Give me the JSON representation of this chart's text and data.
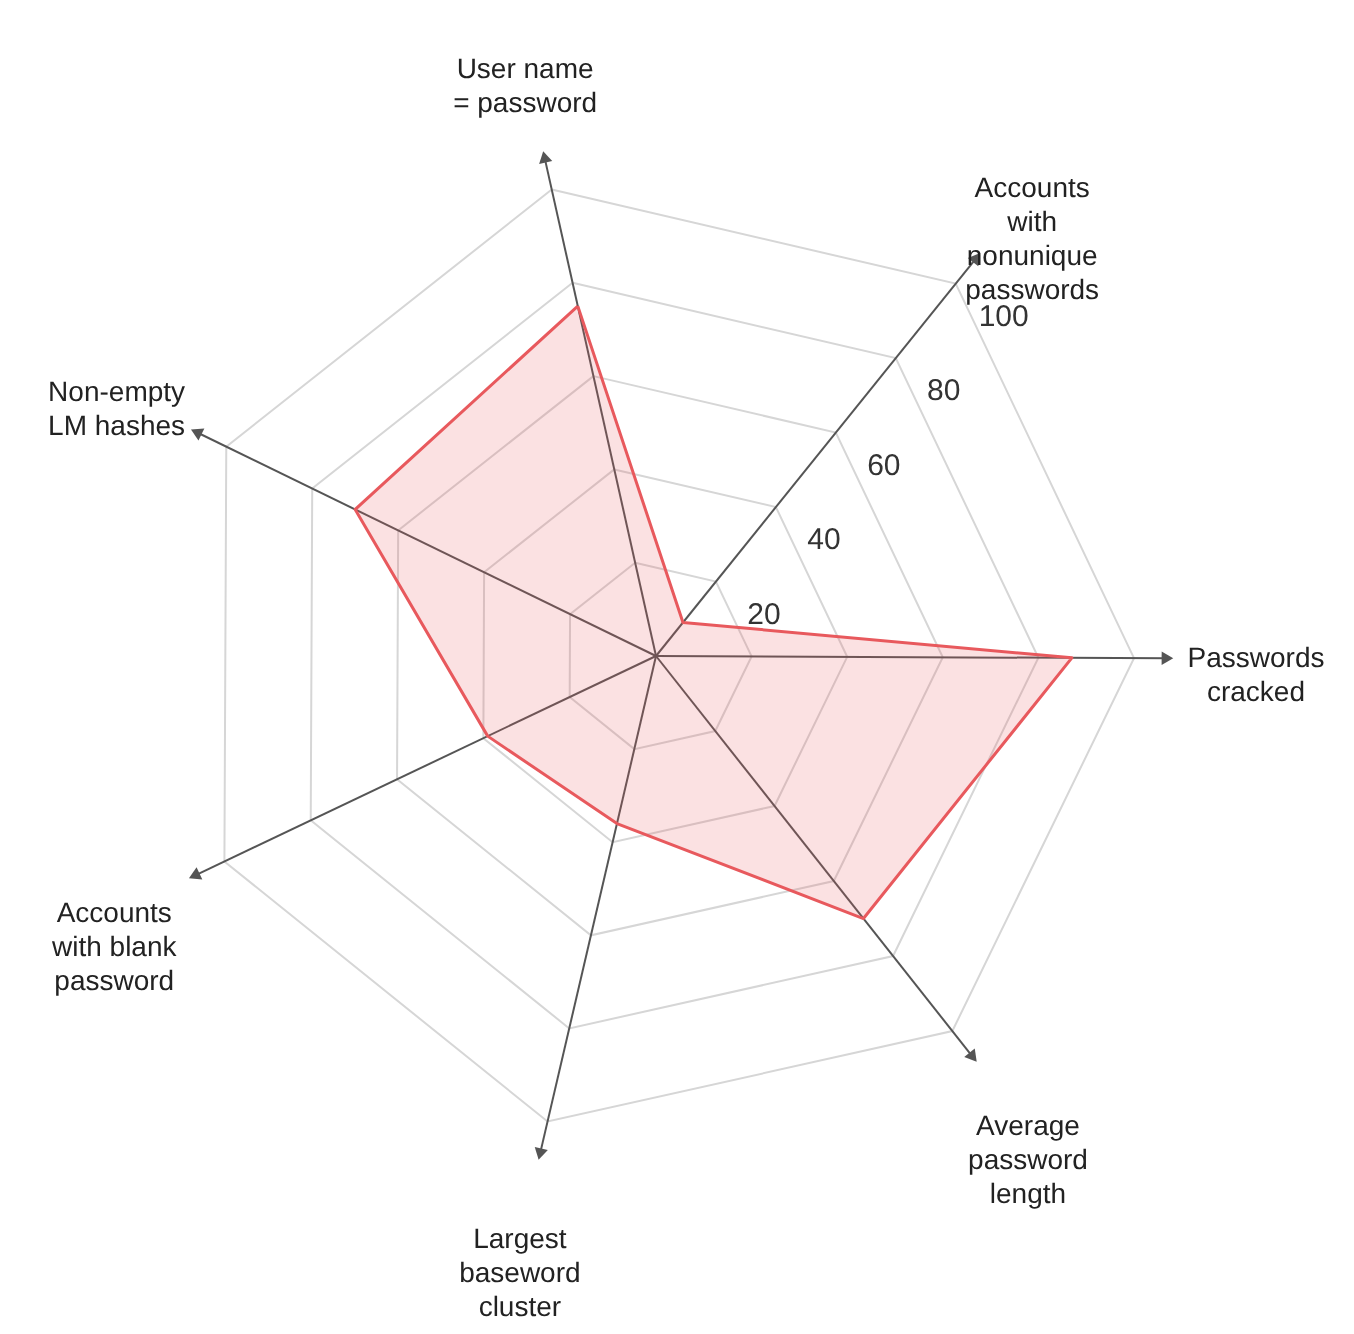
{
  "chart_data": {
    "type": "radar",
    "categories": [
      "User name\n= password",
      "Accounts\nwith\nnonunique\npasswords",
      "Passwords\ncracked",
      "Average\npassword\nlength",
      "Largest\nbaseword\ncluster",
      "Accounts\nwith blank\npassword",
      "Non-empty\nLM hashes"
    ],
    "series": [
      {
        "color": "#e8595d",
        "values": [
          75,
          9,
          87,
          70,
          36,
          39,
          70
        ]
      }
    ],
    "ylim": [
      0,
      100
    ],
    "yticks": [
      20,
      40,
      60,
      80,
      100
    ],
    "grid": true,
    "marker": "none"
  }
}
